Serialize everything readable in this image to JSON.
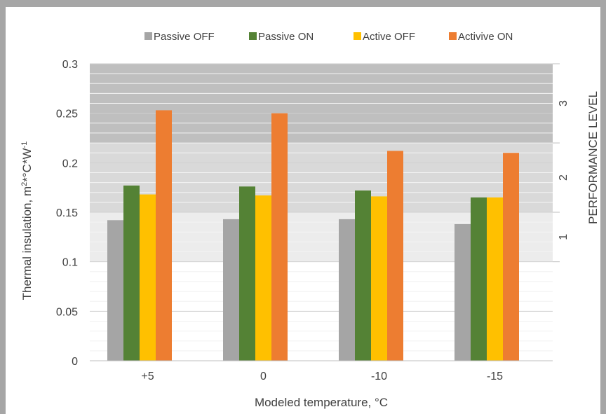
{
  "chart_data": {
    "type": "bar",
    "title": "",
    "xlabel": "Modeled temperature, °C",
    "ylabel": "Thermal insulation, m",
    "ylabel_sup1": "2",
    "ylabel_mid": "*°C*W",
    "ylabel_sup2": "-1",
    "y2label": "PERFORMANCE LEVEL",
    "categories": [
      "+5",
      "0",
      "-10",
      "-15"
    ],
    "ylim": [
      0,
      0.3
    ],
    "yticks": [
      0,
      0.05,
      0.1,
      0.15,
      0.2,
      0.25,
      0.3
    ],
    "ytick_labels": [
      "0",
      "0.05",
      "0.1",
      "0.15",
      "0.2",
      "0.25",
      "0.3"
    ],
    "grid": true,
    "legend_position": "top",
    "series": [
      {
        "name": "Passive OFF",
        "color": "#a5a5a5",
        "values": [
          0.142,
          0.143,
          0.143,
          0.138
        ]
      },
      {
        "name": "Passive ON",
        "color": "#548235",
        "values": [
          0.177,
          0.176,
          0.172,
          0.165
        ]
      },
      {
        "name": "Active OFF",
        "color": "#ffc000",
        "values": [
          0.168,
          0.167,
          0.166,
          0.165
        ]
      },
      {
        "name": "Activive ON",
        "color": "#ed7d31",
        "values": [
          0.253,
          0.25,
          0.212,
          0.21
        ]
      }
    ],
    "performance_bands": [
      {
        "label": "1",
        "from": 0.1,
        "to": 0.15,
        "color": "#ececec"
      },
      {
        "label": "2",
        "from": 0.15,
        "to": 0.22,
        "color": "#d9d9d9"
      },
      {
        "label": "3",
        "from": 0.22,
        "to": 0.3,
        "color": "#bfbfbf"
      }
    ]
  }
}
